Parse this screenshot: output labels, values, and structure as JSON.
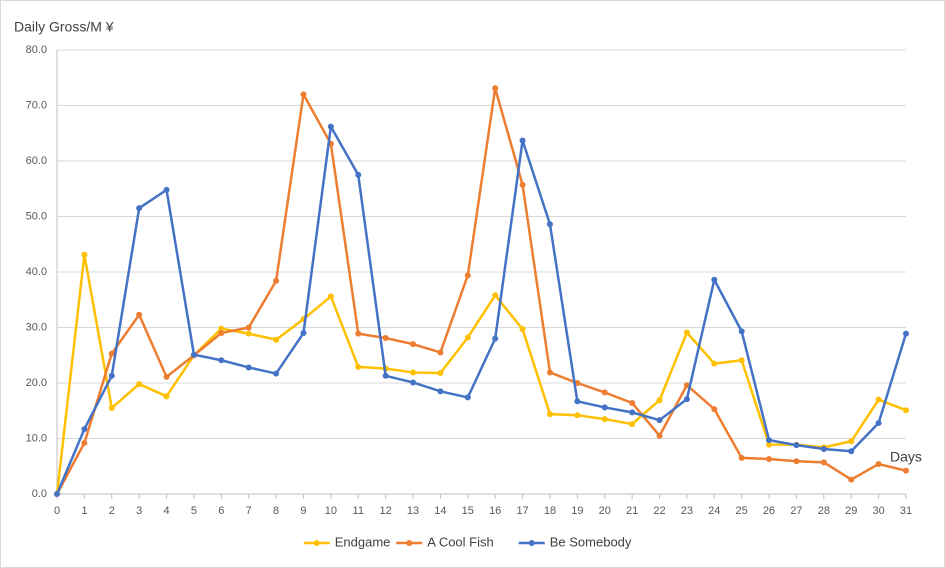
{
  "chart_data": {
    "type": "line",
    "y_label": "Daily Gross/M ¥",
    "x_label": "Days",
    "x": [
      0,
      1,
      2,
      3,
      4,
      5,
      6,
      7,
      8,
      9,
      10,
      11,
      12,
      13,
      14,
      15,
      16,
      17,
      18,
      19,
      20,
      21,
      22,
      23,
      24,
      25,
      26,
      27,
      28,
      29,
      30,
      31
    ],
    "xlim": [
      0,
      31
    ],
    "xticks": [
      0,
      1,
      2,
      3,
      4,
      5,
      6,
      7,
      8,
      9,
      10,
      11,
      12,
      13,
      14,
      15,
      16,
      17,
      18,
      19,
      20,
      21,
      22,
      23,
      24,
      25,
      26,
      27,
      28,
      29,
      30,
      31
    ],
    "ylim": [
      0,
      80
    ],
    "yticks": [
      {
        "value": 0,
        "label": "0.0"
      },
      {
        "value": 10,
        "label": "10.0"
      },
      {
        "value": 20,
        "label": "20.0"
      },
      {
        "value": 30,
        "label": "30.0"
      },
      {
        "value": 40,
        "label": "40.0"
      },
      {
        "value": 50,
        "label": "50.0"
      },
      {
        "value": 60,
        "label": "60.0"
      },
      {
        "value": 70,
        "label": "70.0"
      },
      {
        "value": 80,
        "label": "80.0"
      }
    ],
    "grid": true,
    "legend": "bottom",
    "series": [
      {
        "name": "Endgame",
        "color": "#FFC000",
        "values": [
          0,
          43.1,
          15.5,
          19.8,
          17.6,
          25,
          29.8,
          28.9,
          27.8,
          31.5,
          35.6,
          22.9,
          22.6,
          21.9,
          21.8,
          28.2,
          35.8,
          29.7,
          14.4,
          14.2,
          13.5,
          12.6,
          16.9,
          29.1,
          23.5,
          24.1,
          8.9,
          8.9,
          8.4,
          9.5,
          17,
          15.1
        ]
      },
      {
        "name": "A Cool Fish",
        "color": "#ED7D31",
        "values": [
          0,
          9.2,
          25.3,
          32.3,
          21.1,
          25,
          29,
          30,
          38.4,
          72,
          63.1,
          28.9,
          28.1,
          27,
          25.5,
          39.4,
          73.1,
          55.7,
          21.9,
          20,
          18.3,
          16.4,
          10.5,
          19.6,
          15.3,
          6.5,
          6.3,
          5.9,
          5.7,
          2.6,
          5.4,
          4.2
        ]
      },
      {
        "name": "Be Somebody",
        "color": "#4472C4",
        "values": [
          0,
          11.7,
          21.3,
          51.5,
          54.8,
          25.1,
          24.1,
          22.8,
          21.7,
          29,
          66.2,
          57.5,
          21.3,
          20.1,
          18.5,
          17.4,
          28,
          63.7,
          48.6,
          16.7,
          15.6,
          14.7,
          13.3,
          17.1,
          38.6,
          29.3,
          9.7,
          8.8,
          8.1,
          7.7,
          12.8,
          28.9
        ]
      }
    ]
  }
}
